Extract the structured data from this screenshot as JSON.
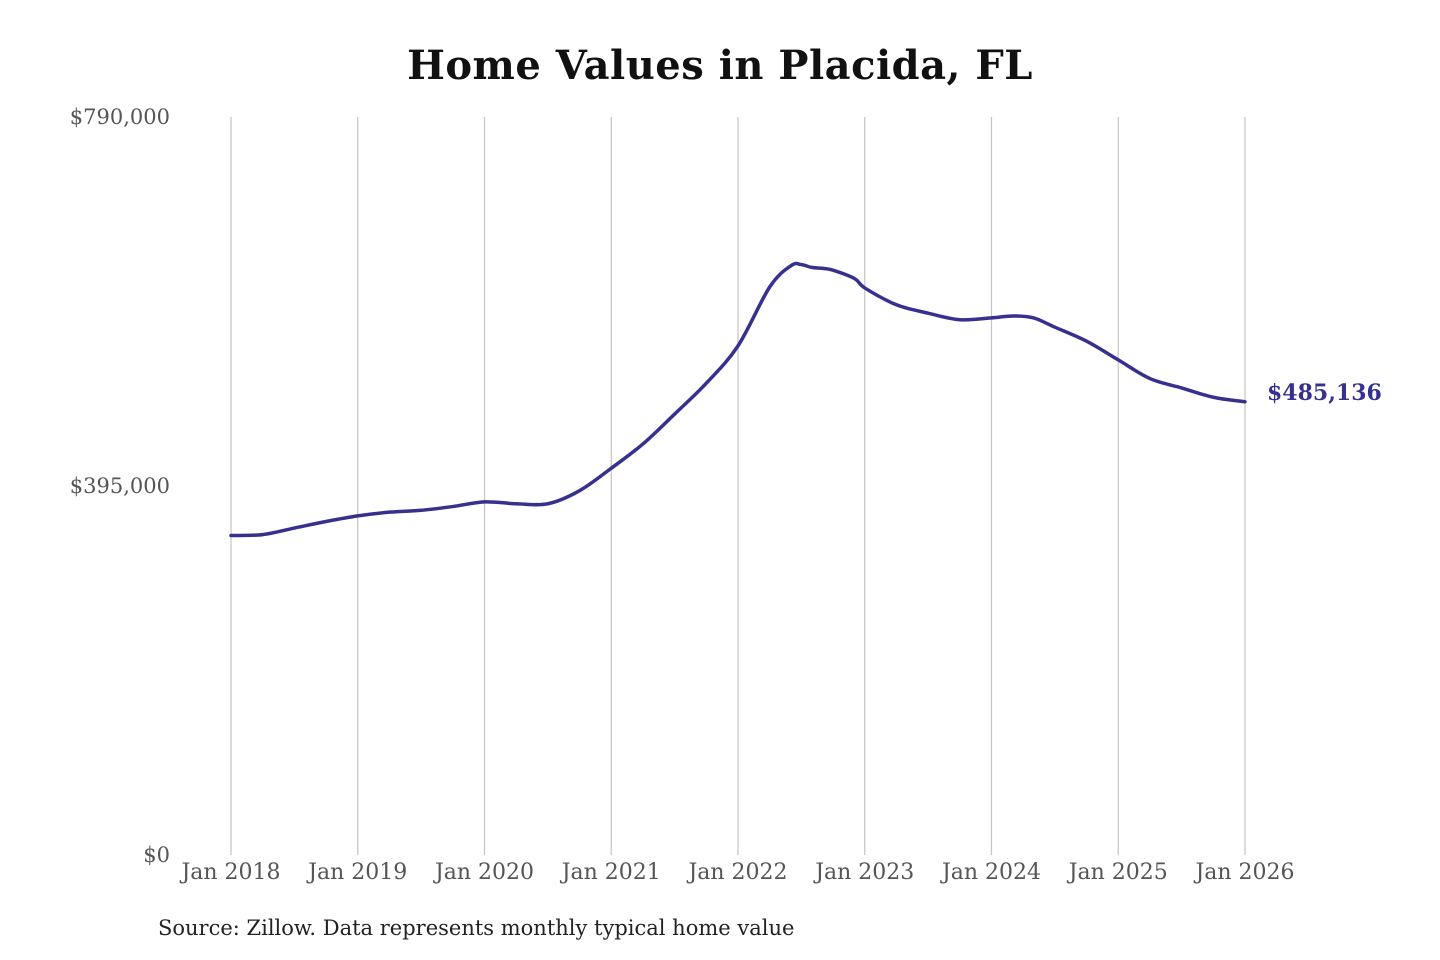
{
  "chart_data": {
    "type": "line",
    "title": "Home Values in Placida, FL",
    "xlabel": "",
    "ylabel": "",
    "ylim": [
      0,
      790000
    ],
    "y_ticks": [
      {
        "value": 0,
        "label": "$0"
      },
      {
        "value": 395000,
        "label": "$395,000"
      },
      {
        "value": 790000,
        "label": "$790,000"
      }
    ],
    "x_ticks": [
      {
        "value": 2018.0,
        "label": "Jan 2018"
      },
      {
        "value": 2019.0,
        "label": "Jan 2019"
      },
      {
        "value": 2020.0,
        "label": "Jan 2020"
      },
      {
        "value": 2021.0,
        "label": "Jan 2021"
      },
      {
        "value": 2022.0,
        "label": "Jan 2022"
      },
      {
        "value": 2023.0,
        "label": "Jan 2023"
      },
      {
        "value": 2024.0,
        "label": "Jan 2024"
      },
      {
        "value": 2025.0,
        "label": "Jan 2025"
      },
      {
        "value": 2026.0,
        "label": "Jan 2026"
      }
    ],
    "xlim": [
      2018.0,
      2026.0
    ],
    "grid": {
      "vertical": true,
      "horizontal": false
    },
    "legend": "none",
    "color": "#36318f",
    "end_label": "$485,136",
    "series": [
      {
        "x": [
          2018.0,
          2018.25,
          2018.5,
          2018.75,
          2019.0,
          2019.25,
          2019.5,
          2019.75,
          2020.0,
          2020.25,
          2020.5,
          2020.75,
          2021.0,
          2021.25,
          2021.5,
          2021.75,
          2022.0,
          2022.25,
          2022.42,
          2022.5,
          2022.58,
          2022.67,
          2022.75,
          2022.92,
          2023.0,
          2023.25,
          2023.5,
          2023.75,
          2024.0,
          2024.17,
          2024.33,
          2024.5,
          2024.75,
          2025.0,
          2025.25,
          2025.5,
          2025.75,
          2026.0
        ],
        "y": [
          342000,
          343000,
          350000,
          357000,
          363000,
          367000,
          369000,
          373000,
          378000,
          376000,
          376000,
          390000,
          414000,
          440000,
          472000,
          505000,
          545000,
          608000,
          631000,
          632000,
          629000,
          628000,
          626000,
          617000,
          607000,
          589000,
          580000,
          573000,
          575000,
          577000,
          575000,
          565000,
          550000,
          530000,
          510000,
          500000,
          490000,
          485136
        ]
      }
    ]
  },
  "source_note": "Source: Zillow. Data represents monthly typical home value"
}
